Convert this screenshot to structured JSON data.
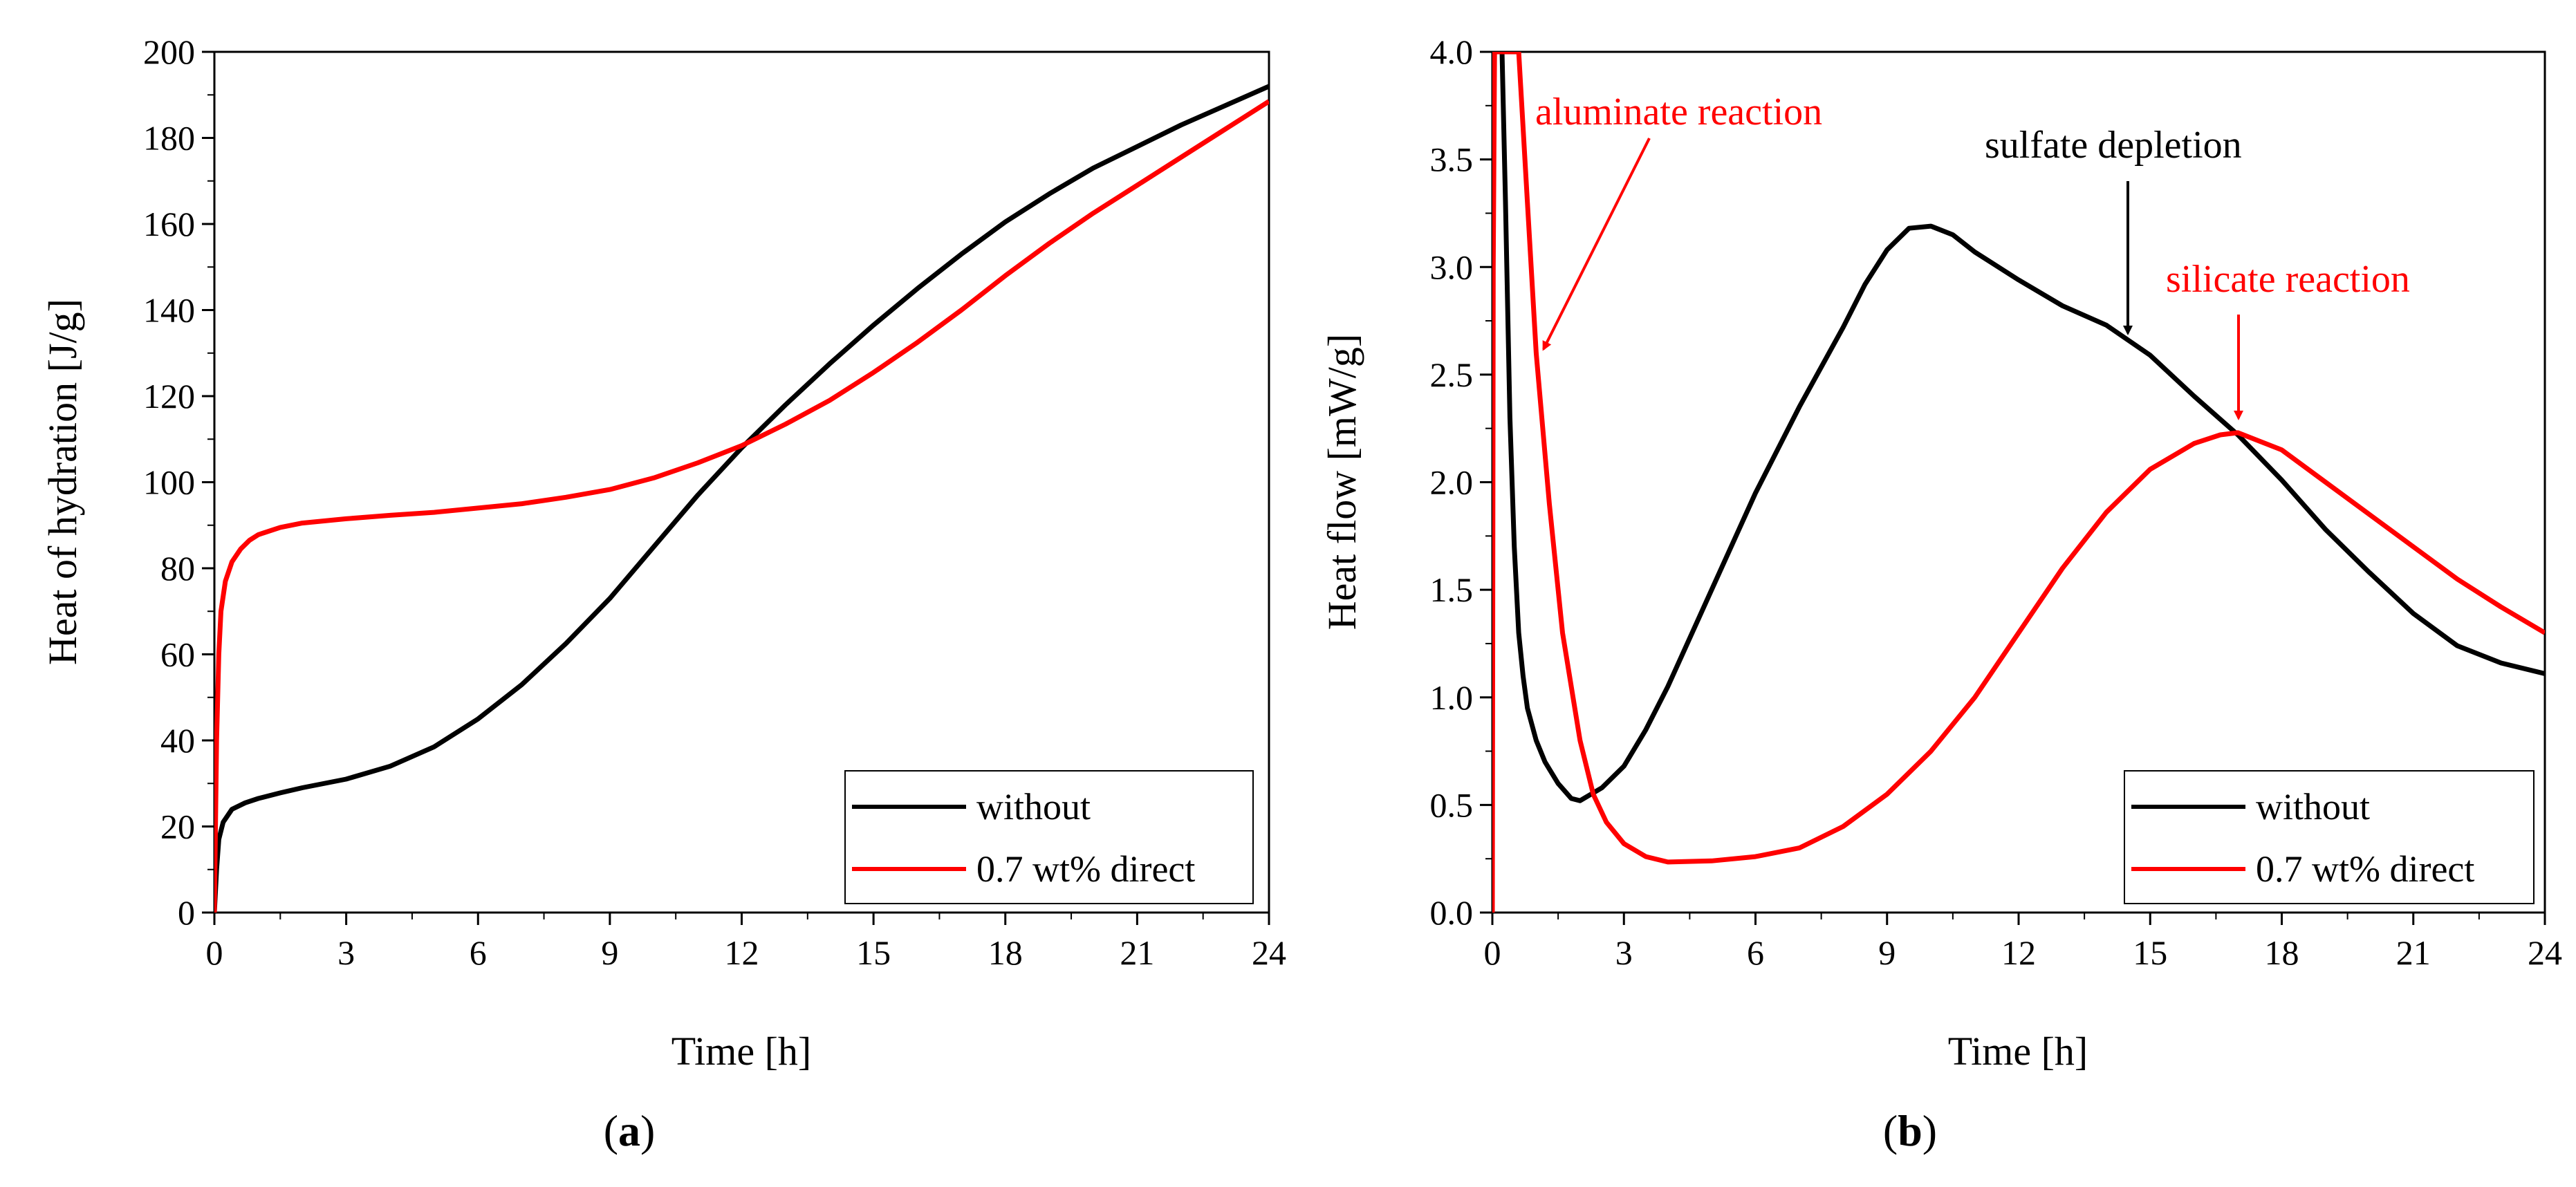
{
  "chart_data": [
    {
      "type": "line",
      "panel_label": "a",
      "xlabel": "Time [h]",
      "ylabel": "Heat of hydration [J/g]",
      "xlim": [
        0,
        24
      ],
      "ylim": [
        0,
        200
      ],
      "xticks": [
        0,
        3,
        6,
        9,
        12,
        15,
        18,
        21,
        24
      ],
      "yticks": [
        0,
        20,
        40,
        60,
        80,
        100,
        120,
        140,
        160,
        180,
        200
      ],
      "xtick_labels": [
        "0",
        "3",
        "6",
        "9",
        "12",
        "15",
        "18",
        "21",
        "24"
      ],
      "ytick_labels": [
        "0",
        "20",
        "40",
        "60",
        "80",
        "100",
        "120",
        "140",
        "160",
        "180",
        "200"
      ],
      "legend_position": "bottom-right",
      "series": [
        {
          "name": "without",
          "color": "#000000",
          "points": [
            [
              0,
              0
            ],
            [
              0.05,
              10
            ],
            [
              0.1,
              17
            ],
            [
              0.2,
              21
            ],
            [
              0.4,
              24
            ],
            [
              0.7,
              25.5
            ],
            [
              1,
              26.5
            ],
            [
              1.5,
              27.8
            ],
            [
              2,
              29
            ],
            [
              3,
              31
            ],
            [
              4,
              34
            ],
            [
              5,
              38.5
            ],
            [
              6,
              45
            ],
            [
              7,
              53
            ],
            [
              8,
              62.5
            ],
            [
              9,
              73
            ],
            [
              10,
              85
            ],
            [
              11,
              97
            ],
            [
              12,
              108
            ],
            [
              13,
              118
            ],
            [
              14,
              127.5
            ],
            [
              15,
              136.5
            ],
            [
              16,
              145
            ],
            [
              17,
              153
            ],
            [
              18,
              160.5
            ],
            [
              19,
              167
            ],
            [
              20,
              173
            ],
            [
              21,
              178
            ],
            [
              22,
              183
            ],
            [
              23,
              187.5
            ],
            [
              24,
              192
            ]
          ]
        },
        {
          "name": "0.7 wt% direct",
          "color": "#ff0000",
          "points": [
            [
              0,
              0
            ],
            [
              0.05,
              40
            ],
            [
              0.1,
              60
            ],
            [
              0.15,
              70
            ],
            [
              0.25,
              77
            ],
            [
              0.4,
              81.5
            ],
            [
              0.6,
              84.5
            ],
            [
              0.8,
              86.5
            ],
            [
              1,
              87.8
            ],
            [
              1.5,
              89.5
            ],
            [
              2,
              90.5
            ],
            [
              3,
              91.5
            ],
            [
              4,
              92.3
            ],
            [
              5,
              93
            ],
            [
              6,
              94
            ],
            [
              7,
              95
            ],
            [
              8,
              96.5
            ],
            [
              9,
              98.3
            ],
            [
              10,
              101
            ],
            [
              11,
              104.5
            ],
            [
              12,
              108.5
            ],
            [
              13,
              113.5
            ],
            [
              14,
              119
            ],
            [
              15,
              125.5
            ],
            [
              16,
              132.5
            ],
            [
              17,
              140
            ],
            [
              18,
              148
            ],
            [
              19,
              155.5
            ],
            [
              20,
              162.5
            ],
            [
              21,
              169
            ],
            [
              22,
              175.5
            ],
            [
              23,
              182
            ],
            [
              24,
              188.5
            ]
          ]
        }
      ]
    },
    {
      "type": "line",
      "panel_label": "b",
      "xlabel": "Time [h]",
      "ylabel": "Heat flow [mW/g]",
      "xlim": [
        0,
        24
      ],
      "ylim": [
        0,
        4
      ],
      "xticks": [
        0,
        3,
        6,
        9,
        12,
        15,
        18,
        21,
        24
      ],
      "yticks": [
        0,
        0.5,
        1,
        1.5,
        2,
        2.5,
        3,
        3.5,
        4
      ],
      "xtick_labels": [
        "0",
        "3",
        "6",
        "9",
        "12",
        "15",
        "18",
        "21",
        "24"
      ],
      "ytick_labels": [
        "0.0",
        "0.5",
        "1.0",
        "1.5",
        "2.0",
        "2.5",
        "3.0",
        "3.5",
        "4.0"
      ],
      "legend_position": "bottom-right",
      "series": [
        {
          "name": "without",
          "color": "#000000",
          "points": [
            [
              0.22,
              4.0
            ],
            [
              0.3,
              3.3
            ],
            [
              0.4,
              2.3
            ],
            [
              0.5,
              1.7
            ],
            [
              0.6,
              1.3
            ],
            [
              0.7,
              1.1
            ],
            [
              0.8,
              0.95
            ],
            [
              1,
              0.8
            ],
            [
              1.2,
              0.7
            ],
            [
              1.5,
              0.6
            ],
            [
              1.8,
              0.53
            ],
            [
              2,
              0.52
            ],
            [
              2.5,
              0.58
            ],
            [
              3,
              0.68
            ],
            [
              3.5,
              0.85
            ],
            [
              4,
              1.05
            ],
            [
              5,
              1.5
            ],
            [
              6,
              1.95
            ],
            [
              7,
              2.35
            ],
            [
              8,
              2.72
            ],
            [
              8.5,
              2.92
            ],
            [
              9,
              3.08
            ],
            [
              9.5,
              3.18
            ],
            [
              10,
              3.19
            ],
            [
              10.5,
              3.15
            ],
            [
              11,
              3.07
            ],
            [
              12,
              2.94
            ],
            [
              13,
              2.82
            ],
            [
              14,
              2.73
            ],
            [
              15,
              2.59
            ],
            [
              16,
              2.4
            ],
            [
              17,
              2.22
            ],
            [
              18,
              2.01
            ],
            [
              19,
              1.78
            ],
            [
              20,
              1.58
            ],
            [
              21,
              1.39
            ],
            [
              22,
              1.24
            ],
            [
              23,
              1.16
            ],
            [
              24,
              1.11
            ]
          ]
        },
        {
          "name": "0.7 wt% direct",
          "color": "#ff0000",
          "points": [
            [
              0,
              0
            ],
            [
              0.02,
              3.0
            ],
            [
              0.05,
              4.0
            ],
            [
              0.6,
              4.0
            ],
            [
              0.8,
              3.3
            ],
            [
              1,
              2.6
            ],
            [
              1.3,
              1.9
            ],
            [
              1.6,
              1.3
            ],
            [
              2,
              0.8
            ],
            [
              2.3,
              0.55
            ],
            [
              2.6,
              0.42
            ],
            [
              3,
              0.32
            ],
            [
              3.5,
              0.26
            ],
            [
              4,
              0.235
            ],
            [
              5,
              0.24
            ],
            [
              6,
              0.26
            ],
            [
              7,
              0.3
            ],
            [
              8,
              0.4
            ],
            [
              9,
              0.55
            ],
            [
              10,
              0.75
            ],
            [
              11,
              1.0
            ],
            [
              12,
              1.3
            ],
            [
              13,
              1.6
            ],
            [
              14,
              1.86
            ],
            [
              15,
              2.06
            ],
            [
              16,
              2.18
            ],
            [
              16.6,
              2.22
            ],
            [
              17,
              2.23
            ],
            [
              18,
              2.15
            ],
            [
              19,
              2.0
            ],
            [
              20,
              1.85
            ],
            [
              21,
              1.7
            ],
            [
              22,
              1.55
            ],
            [
              23,
              1.42
            ],
            [
              24,
              1.3
            ]
          ]
        }
      ],
      "annotations": [
        {
          "text": "aluminate reaction",
          "color": "#ff0000",
          "arrow_to": [
            1.1,
            2.6
          ]
        },
        {
          "text": "sulfate depletion",
          "color": "#000000",
          "arrow_to": [
            14.5,
            2.7
          ]
        },
        {
          "text": "silicate reaction",
          "color": "#ff0000",
          "arrow_to": [
            17,
            2.25
          ]
        }
      ]
    }
  ]
}
